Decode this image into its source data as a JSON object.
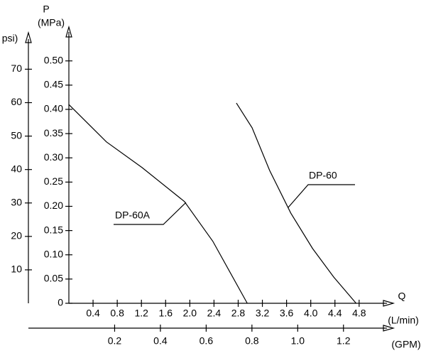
{
  "chart_data": {
    "type": "line",
    "y_label": "P",
    "y_unit": "(MPa)",
    "y2_label": "psi)",
    "x_label": "Q",
    "x_unit": "(L/min)",
    "x2_label": "(GPM)",
    "xlim": [
      0,
      5.26
    ],
    "xticks": [
      0.4,
      0.8,
      1.2,
      1.6,
      {
        "value": 2.0,
        "label": "2.0"
      },
      2.4,
      2.8,
      3.2,
      3.6,
      {
        "value": 4.0,
        "label": "4.0"
      },
      4.4,
      4.8
    ],
    "x2lim": [
      0,
      1.39
    ],
    "x2ticks": [
      0.2,
      0.4,
      0.6,
      0.8,
      {
        "value": 1.0,
        "label": "1.0"
      },
      1.2
    ],
    "ylim": [
      0,
      0.567
    ],
    "yticks": [
      0,
      0.05,
      {
        "value": 0.1,
        "label": "0.10"
      },
      0.15,
      {
        "value": 0.2,
        "label": "0.20"
      },
      0.25,
      {
        "value": 0.3,
        "label": "0.30"
      },
      0.35,
      {
        "value": 0.4,
        "label": "0.40"
      },
      0.45,
      {
        "value": 0.5,
        "label": "0.50"
      }
    ],
    "y2lim": [
      0,
      82.2
    ],
    "y2ticks": [
      10,
      20,
      30,
      40,
      50,
      60,
      70
    ],
    "color": "#000000",
    "series": [
      {
        "name": "DP-60A",
        "color": "#000000",
        "x": [
          0,
          0.62,
          1.21,
          1.91,
          2.38,
          2.95
        ],
        "values": [
          0.41,
          0.333,
          0.28,
          0.21,
          0.128,
          0
        ]
      },
      {
        "name": "DP-60",
        "color": "#000000",
        "x": [
          2.77,
          3.03,
          3.32,
          3.67,
          4.03,
          4.38,
          4.75
        ],
        "values": [
          0.413,
          0.362,
          0.274,
          0.186,
          0.113,
          0.054,
          0
        ]
      }
    ]
  }
}
